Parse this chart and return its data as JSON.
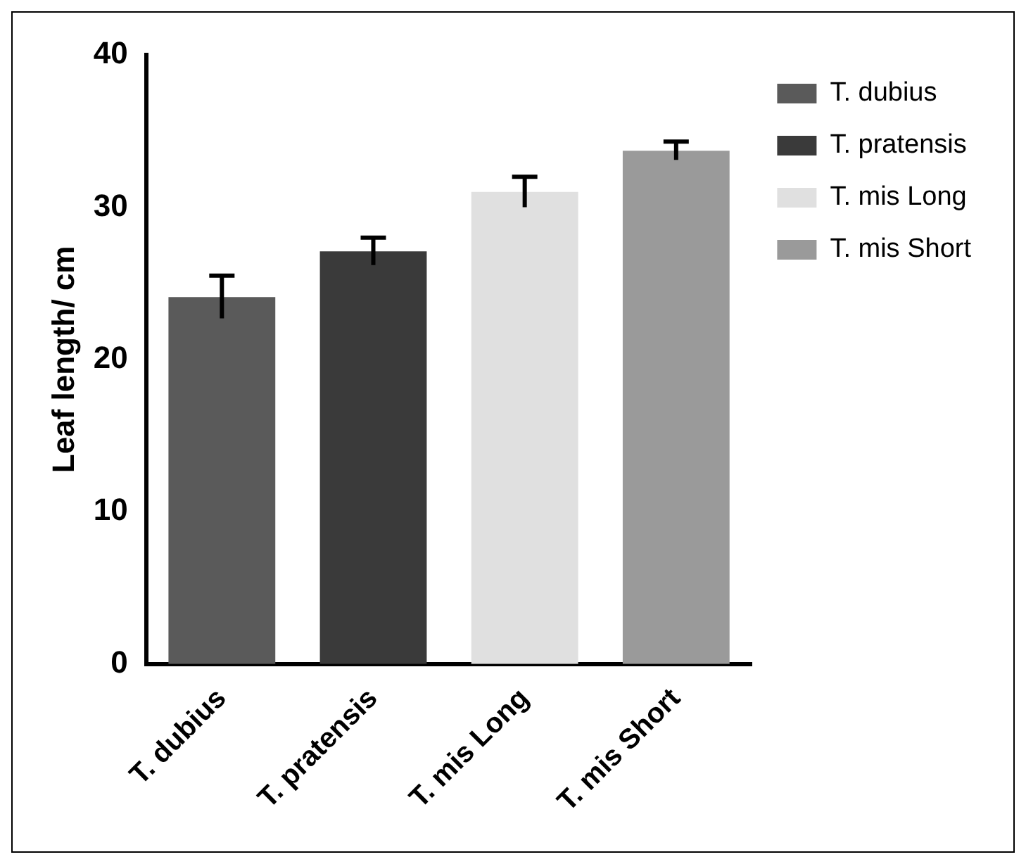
{
  "chart_data": {
    "type": "bar",
    "ylabel": "Leaf length/ cm",
    "categories": [
      "T. dubius",
      "T. pratensis",
      "T. mis Long",
      "T. mis Short"
    ],
    "series": [
      {
        "name": "T. dubius",
        "color": "#5a5a5a",
        "values": [
          24.1,
          null,
          null,
          null
        ],
        "errors": [
          1.4,
          null,
          null,
          null
        ]
      },
      {
        "name": "T. pratensis",
        "color": "#3a3a3a",
        "values": [
          null,
          27.1,
          null,
          null
        ],
        "errors": [
          null,
          0.9,
          null,
          null
        ]
      },
      {
        "name": "T. mis Long",
        "color": "#e0e0e0",
        "values": [
          null,
          null,
          31.0,
          null
        ],
        "errors": [
          null,
          null,
          1.0,
          null
        ]
      },
      {
        "name": "T. mis Short",
        "color": "#9a9a9a",
        "values": [
          null,
          null,
          null,
          33.7
        ],
        "errors": [
          null,
          null,
          null,
          0.6
        ]
      }
    ],
    "stacked": true,
    "ylim": [
      0,
      40
    ],
    "yticks": [
      0,
      10,
      20,
      30,
      40
    ],
    "grid": false,
    "legend": "top right"
  }
}
